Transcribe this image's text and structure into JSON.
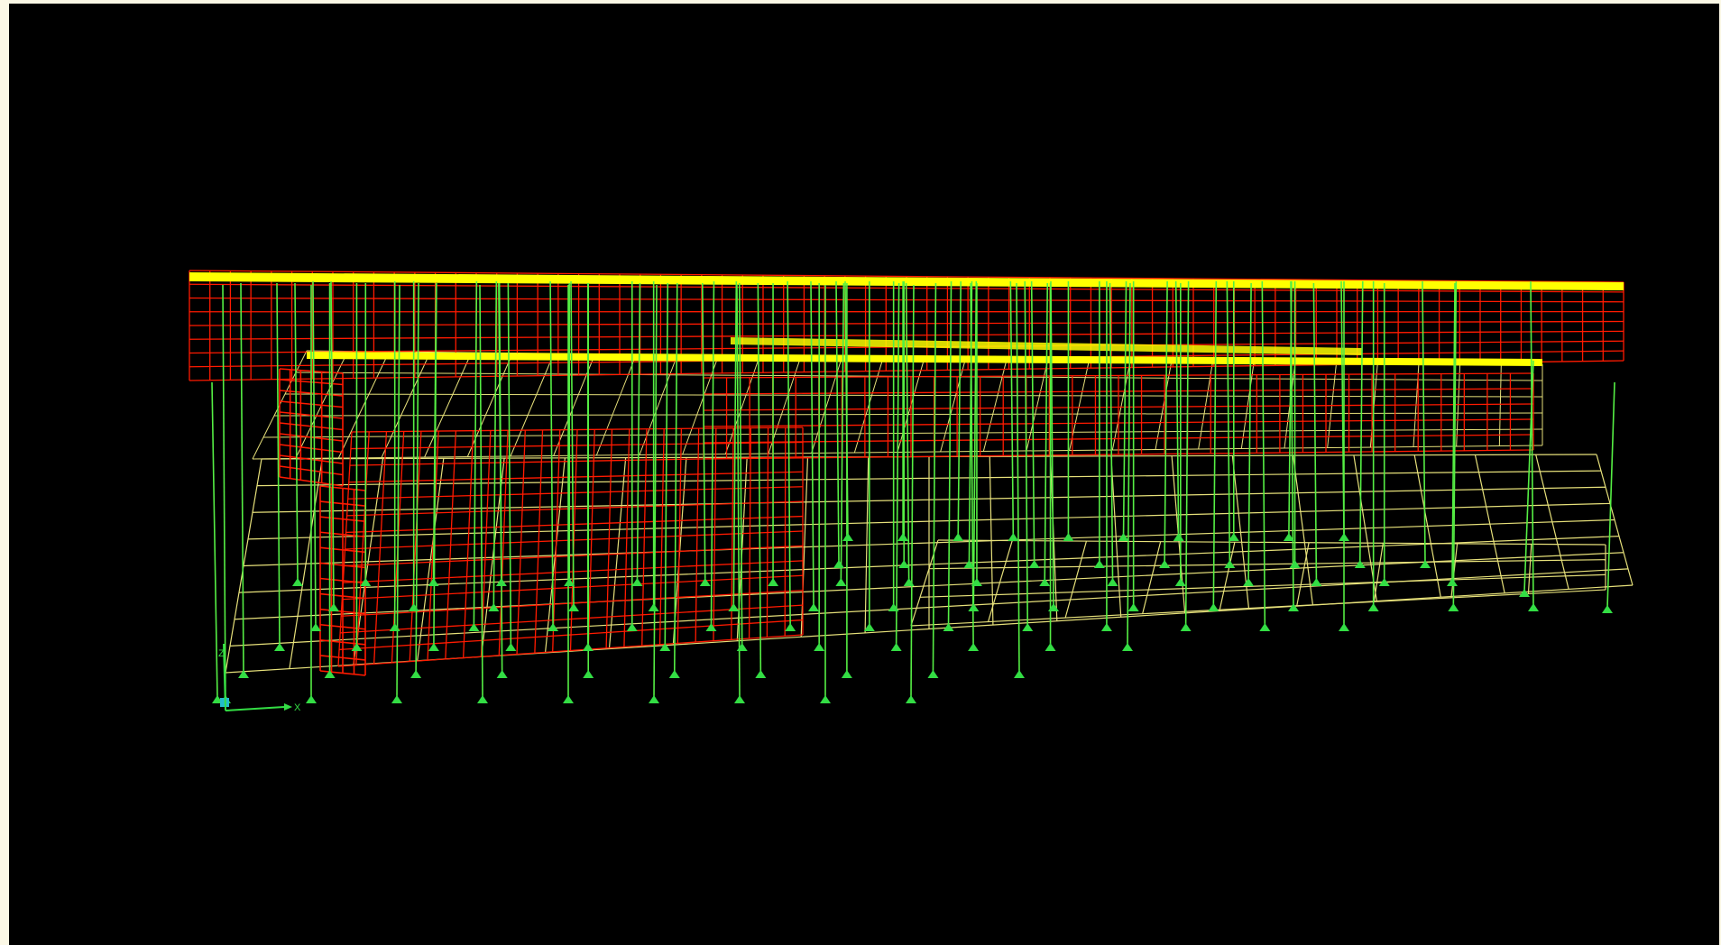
{
  "viewport": {
    "background": "#000000",
    "view_mode": "3-D"
  },
  "colors": {
    "app_background": "#fbf8e6",
    "wall_shell_color": "#ff1a00",
    "slab_edge_color": "#ffff00",
    "frame_color": "#55ee44",
    "support_color": "#33dd44",
    "grid_color": "#e6e07a",
    "axis_color": "#33dd44",
    "axis_origin_color": "#22bbcc"
  },
  "axes": {
    "x_label": "X",
    "z_label": "Z"
  },
  "icons": {
    "support": "pinned-support-icon",
    "axis_triad": "global-axis-triad-icon"
  }
}
